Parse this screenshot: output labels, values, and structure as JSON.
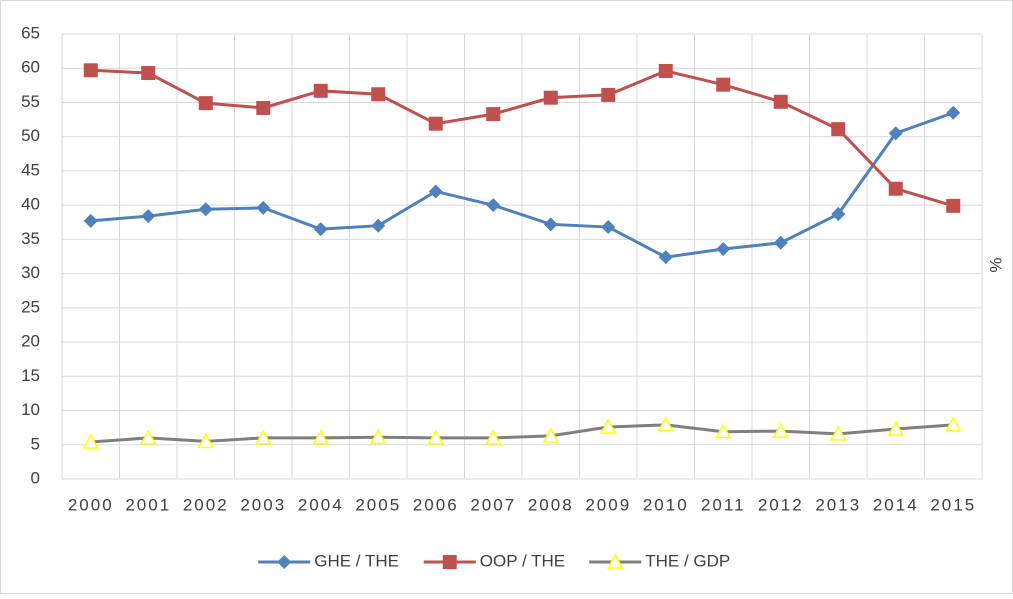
{
  "chart_data": {
    "type": "line",
    "categories": [
      "2000",
      "2001",
      "2002",
      "2003",
      "2004",
      "2005",
      "2006",
      "2007",
      "2008",
      "2009",
      "2010",
      "2011",
      "2012",
      "2013",
      "2014",
      "2015"
    ],
    "series": [
      {
        "name": "GHE / THE",
        "color": "#4f81bd",
        "marker": "diamond",
        "marker_color": "#4f81bd",
        "values": [
          37.7,
          38.4,
          39.4,
          39.6,
          36.5,
          37.0,
          42.0,
          40.0,
          37.2,
          36.8,
          32.4,
          33.6,
          34.5,
          38.7,
          50.5,
          53.5
        ]
      },
      {
        "name": "OOP / THE",
        "color": "#c0504d",
        "marker": "square",
        "marker_color": "#c0504d",
        "values": [
          59.7,
          59.3,
          54.9,
          54.2,
          56.7,
          56.2,
          51.9,
          53.3,
          55.7,
          56.1,
          59.6,
          57.6,
          55.1,
          51.1,
          42.4,
          39.9
        ]
      },
      {
        "name": "THE / GDP",
        "color": "#7f7f7f",
        "marker": "triangle",
        "marker_color": "#ffff00",
        "values": [
          5.4,
          6.0,
          5.5,
          6.0,
          6.0,
          6.1,
          6.0,
          6.0,
          6.3,
          7.6,
          7.9,
          6.9,
          7.0,
          6.6,
          7.3,
          7.9
        ]
      }
    ],
    "y_label_right": "%",
    "ylim": [
      0,
      65
    ],
    "yticks": [
      0,
      5,
      10,
      15,
      20,
      25,
      30,
      35,
      40,
      45,
      50,
      55,
      60,
      65
    ],
    "grid": true,
    "legend": "bottom"
  }
}
